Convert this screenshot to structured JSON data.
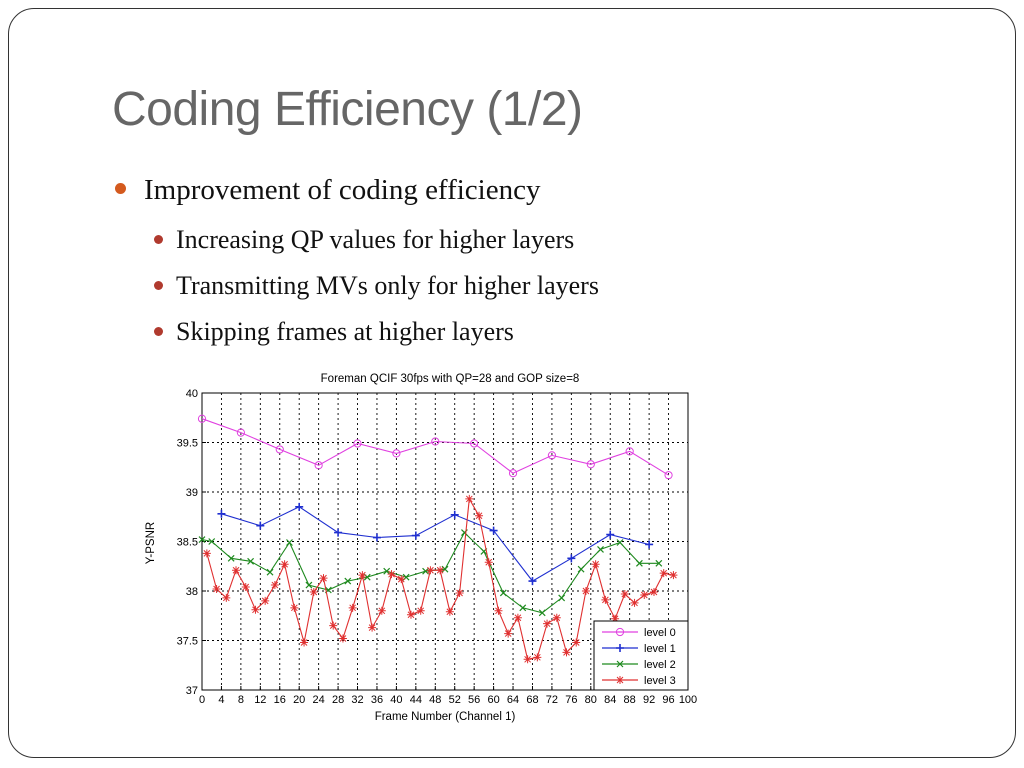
{
  "slide": {
    "title": "Coding Efficiency (1/2)",
    "bullet": "Improvement of coding efficiency",
    "subbullets": [
      "Increasing QP values for higher layers",
      "Transmitting MVs only for higher layers",
      "Skipping frames at higher layers"
    ]
  },
  "colors": {
    "title": "#666666",
    "bullet_l1": "#d45a1e",
    "bullet_l2": "#b03a2e"
  },
  "chart_data": {
    "type": "line",
    "title": "Foreman QCIF 30fps with QP=28 and GOP size=8",
    "xlabel": "Frame Number (Channel 1)",
    "ylabel": "Y-PSNR",
    "xlim": [
      0,
      100
    ],
    "ylim": [
      37,
      40
    ],
    "xticks": [
      0,
      4,
      8,
      12,
      16,
      20,
      24,
      28,
      32,
      36,
      40,
      44,
      48,
      52,
      56,
      60,
      64,
      68,
      72,
      76,
      80,
      84,
      88,
      92,
      96,
      100
    ],
    "yticks": [
      37,
      37.5,
      38,
      38.5,
      39,
      39.5,
      40
    ],
    "grid": true,
    "legend_position": "bottom-right",
    "series": [
      {
        "name": "level 0",
        "color": "#e040e0",
        "marker": "circle",
        "x": [
          0,
          8,
          16,
          24,
          32,
          40,
          48,
          56,
          64,
          72,
          80,
          88,
          96
        ],
        "y": [
          39.74,
          39.6,
          39.43,
          39.27,
          39.49,
          39.39,
          39.51,
          39.49,
          39.19,
          39.37,
          39.28,
          39.41,
          39.17
        ]
      },
      {
        "name": "level 1",
        "color": "#1f2fd0",
        "marker": "plus",
        "x": [
          4,
          12,
          20,
          28,
          36,
          44,
          52,
          60,
          68,
          76,
          84,
          92
        ],
        "y": [
          38.78,
          38.66,
          38.85,
          38.59,
          38.54,
          38.56,
          38.77,
          38.61,
          38.1,
          38.33,
          38.57,
          38.47
        ]
      },
      {
        "name": "level 2",
        "color": "#1f8a1f",
        "marker": "x",
        "x": [
          0,
          2,
          6,
          10,
          14,
          18,
          22,
          26,
          30,
          34,
          38,
          42,
          46,
          50,
          54,
          58,
          62,
          66,
          70,
          74,
          78,
          82,
          86,
          90,
          94
        ],
        "y": [
          38.52,
          38.5,
          38.33,
          38.3,
          38.19,
          38.49,
          38.06,
          38.01,
          38.1,
          38.14,
          38.2,
          38.14,
          38.2,
          38.22,
          38.59,
          38.4,
          37.98,
          37.83,
          37.78,
          37.93,
          38.22,
          38.42,
          38.49,
          38.28,
          38.28
        ]
      },
      {
        "name": "level 3",
        "color": "#e03030",
        "marker": "star",
        "x": [
          1,
          3,
          5,
          7,
          9,
          11,
          13,
          15,
          17,
          19,
          21,
          23,
          25,
          27,
          29,
          31,
          33,
          35,
          37,
          39,
          41,
          43,
          45,
          47,
          49,
          51,
          53,
          55,
          57,
          59,
          61,
          63,
          65,
          67,
          69,
          71,
          73,
          75,
          77,
          79,
          81,
          83,
          85,
          87,
          89,
          91,
          93,
          95,
          97
        ],
        "y": [
          38.38,
          38.02,
          37.93,
          38.21,
          38.04,
          37.81,
          37.9,
          38.06,
          38.27,
          37.83,
          37.48,
          37.99,
          38.13,
          37.65,
          37.52,
          37.83,
          38.16,
          37.63,
          37.8,
          38.17,
          38.12,
          37.76,
          37.8,
          38.21,
          38.21,
          37.79,
          37.98,
          38.93,
          38.76,
          38.29,
          37.8,
          37.57,
          37.73,
          37.31,
          37.33,
          37.67,
          37.73,
          37.38,
          37.48,
          38.0,
          38.27,
          37.91,
          37.72,
          37.97,
          37.88,
          37.96,
          37.99,
          38.18,
          38.16
        ]
      }
    ]
  }
}
